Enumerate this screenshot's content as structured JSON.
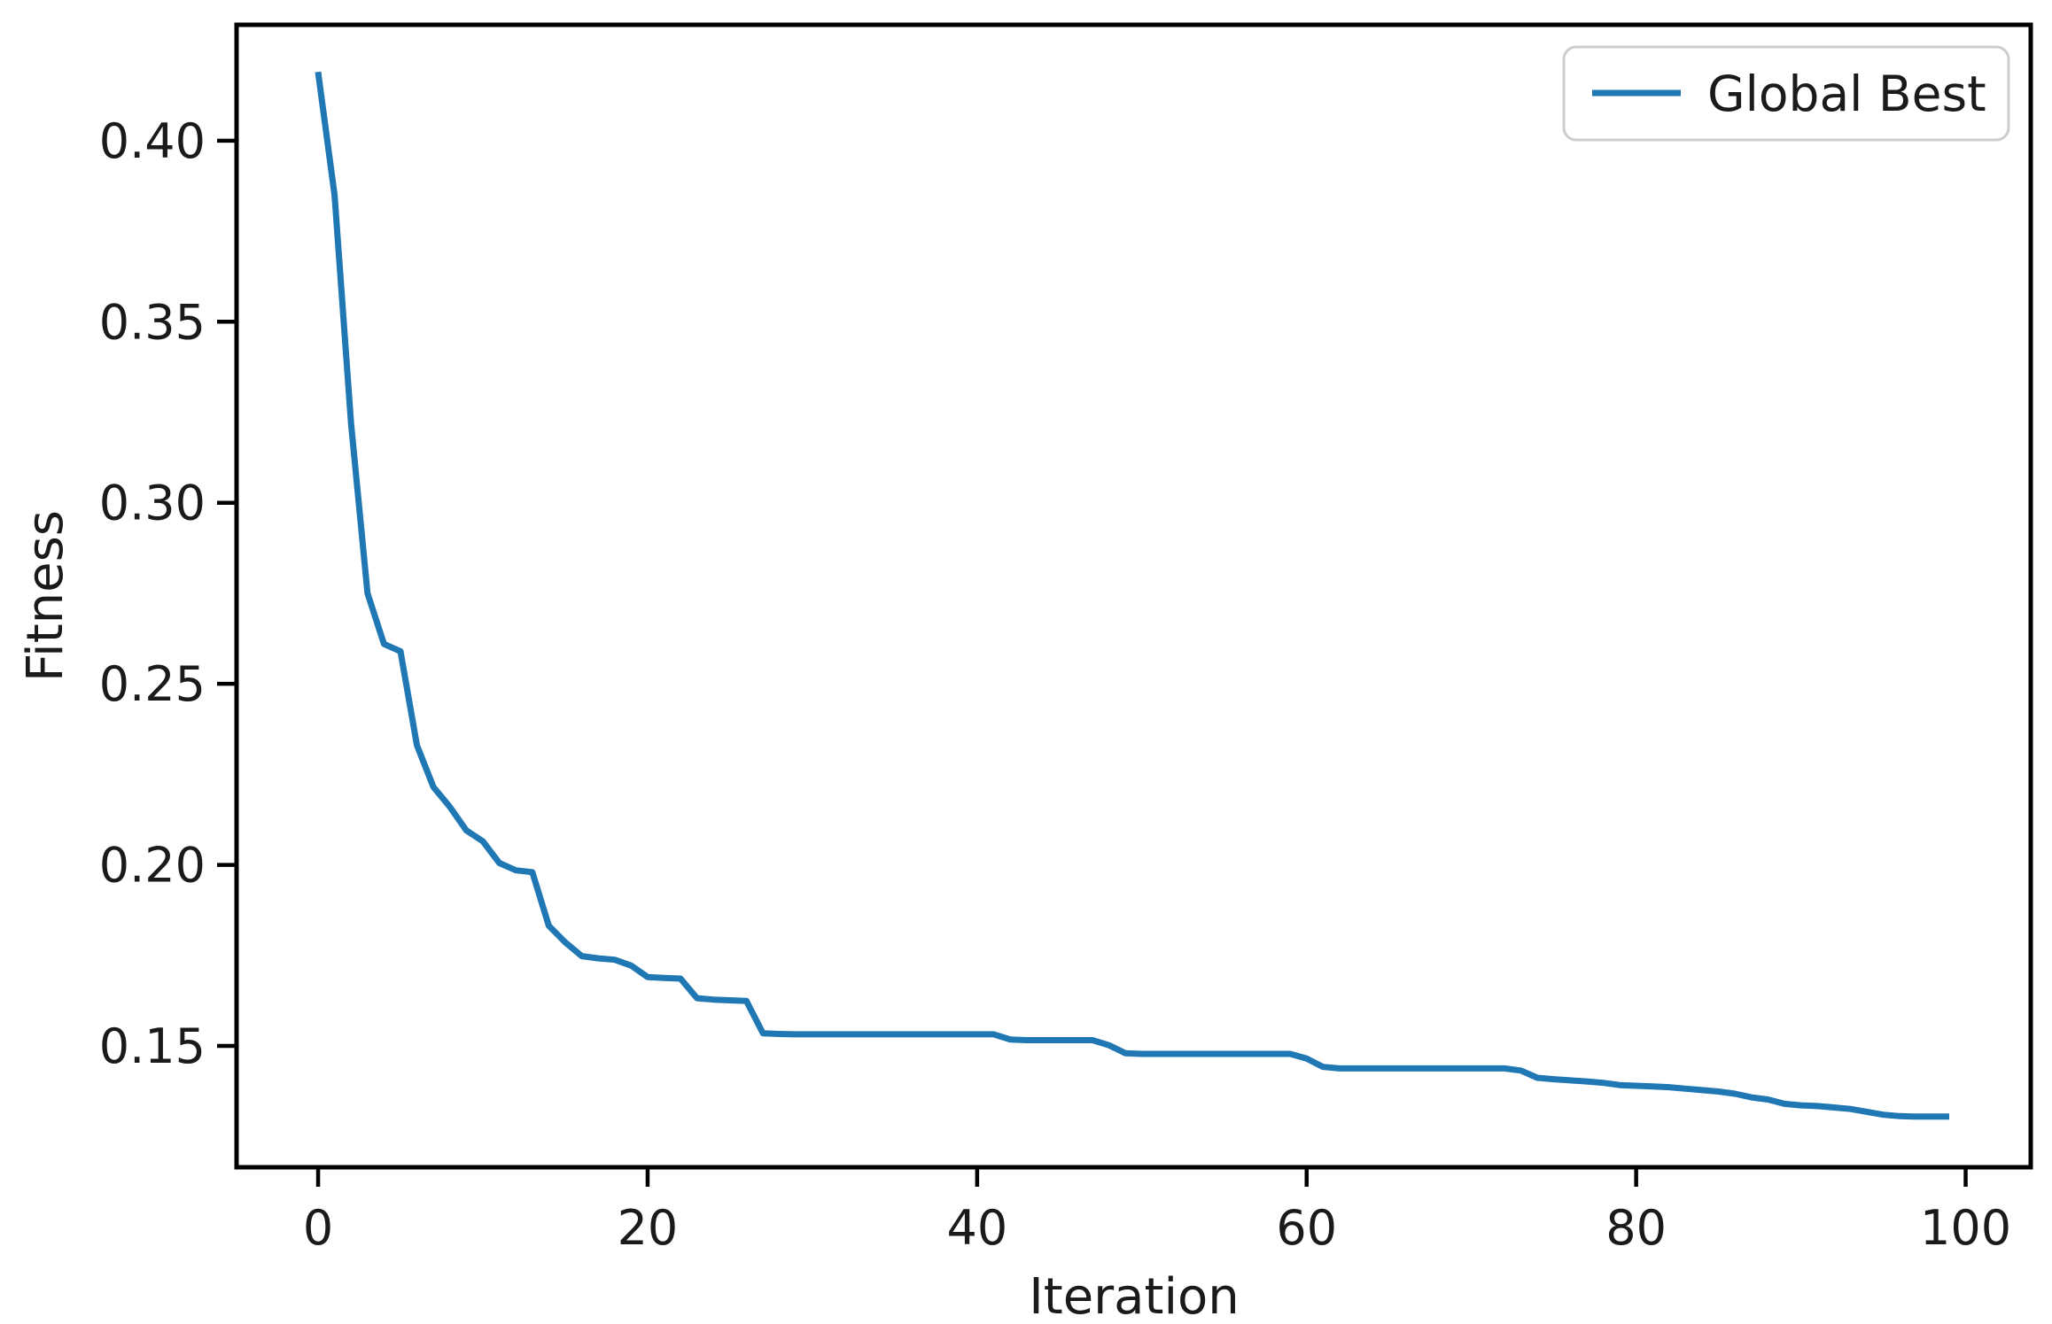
{
  "figure": {
    "background": "#ffffff"
  },
  "chart_data": {
    "type": "line",
    "title": "",
    "xlabel": "Iteration",
    "ylabel": "Fitness",
    "grid": false,
    "legend": {
      "position": "upper right",
      "entries": [
        {
          "label": "Global Best",
          "color": "#1f77b4"
        }
      ]
    },
    "xlim": [
      -4.95,
      103.95
    ],
    "ylim": [
      0.1165,
      0.432
    ],
    "xticks": [
      0,
      20,
      40,
      60,
      80,
      100
    ],
    "xtick_labels": [
      "0",
      "20",
      "40",
      "60",
      "80",
      "100"
    ],
    "yticks": [
      0.15,
      0.2,
      0.25,
      0.3,
      0.35,
      0.4
    ],
    "ytick_labels": [
      "0.15",
      "0.20",
      "0.25",
      "0.30",
      "0.35",
      "0.40"
    ],
    "x_start": 0,
    "x_step": 1,
    "series": [
      {
        "name": "Global Best",
        "color": "#1f77b4",
        "values": [
          0.419,
          0.385,
          0.322,
          0.275,
          0.261,
          0.259,
          0.233,
          0.2215,
          0.216,
          0.2095,
          0.2065,
          0.2005,
          0.1985,
          0.198,
          0.1832,
          0.1786,
          0.1748,
          0.1742,
          0.1738,
          0.1722,
          0.169,
          0.1688,
          0.1686,
          0.1632,
          0.1628,
          0.1626,
          0.1624,
          0.1535,
          0.1533,
          0.1532,
          0.1532,
          0.1532,
          0.1532,
          0.1532,
          0.1532,
          0.1532,
          0.1532,
          0.1532,
          0.1532,
          0.1532,
          0.1532,
          0.1532,
          0.1518,
          0.1516,
          0.1516,
          0.1516,
          0.1516,
          0.1516,
          0.1502,
          0.148,
          0.1478,
          0.1478,
          0.1478,
          0.1478,
          0.1478,
          0.1478,
          0.1478,
          0.1478,
          0.1478,
          0.1478,
          0.1465,
          0.1442,
          0.1438,
          0.1438,
          0.1438,
          0.1438,
          0.1438,
          0.1438,
          0.1438,
          0.1438,
          0.1438,
          0.1438,
          0.1438,
          0.1432,
          0.1412,
          0.1408,
          0.1405,
          0.1402,
          0.1398,
          0.1392,
          0.139,
          0.1388,
          0.1386,
          0.1382,
          0.1378,
          0.1374,
          0.1368,
          0.1358,
          0.1352,
          0.134,
          0.1336,
          0.1334,
          0.133,
          0.1326,
          0.1318,
          0.131,
          0.1306,
          0.1305,
          0.1305,
          0.1305
        ]
      }
    ]
  },
  "styles": {
    "line_color": "#1f77b4",
    "spine_color": "#000000",
    "tick_color": "#000000",
    "text_color": "#1a1a1a",
    "legend_border_color": "#cccccc",
    "legend_bg_color": "#ffffff"
  }
}
